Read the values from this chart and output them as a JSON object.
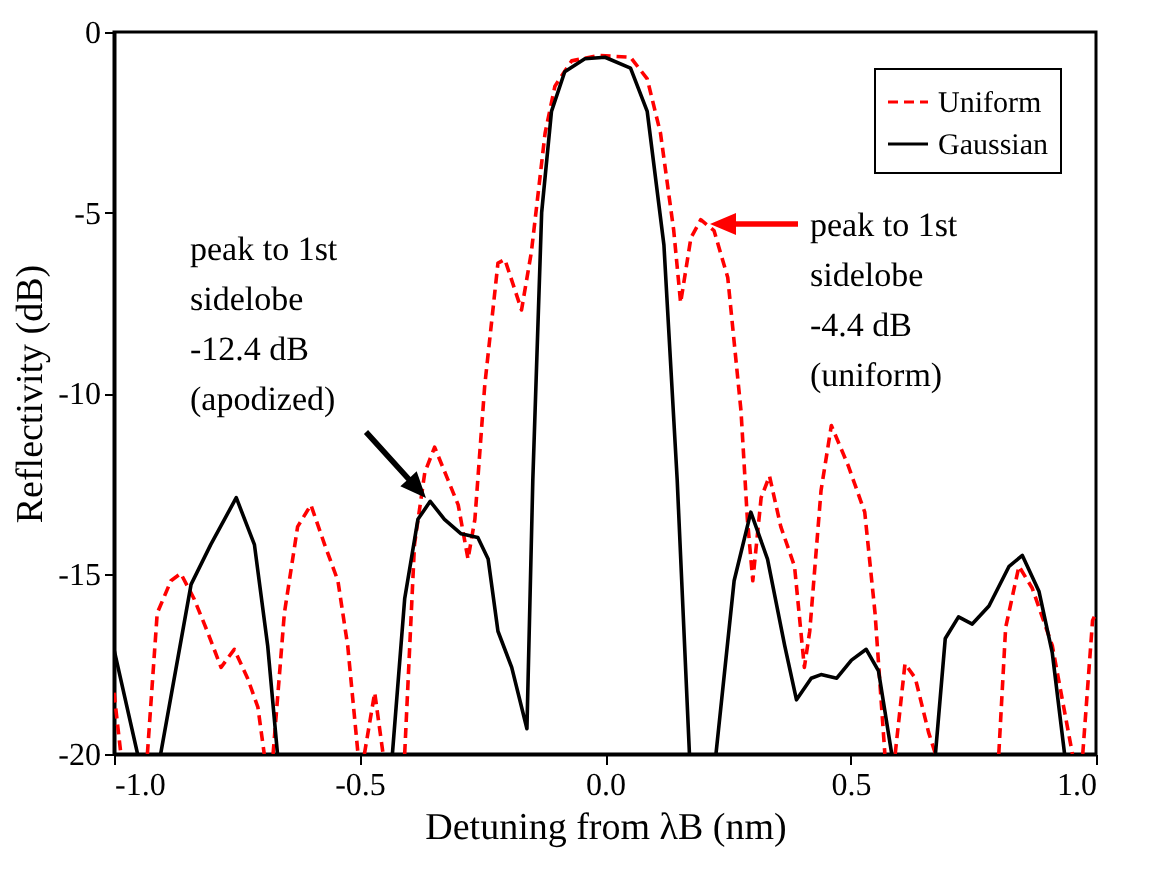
{
  "chart_data": {
    "type": "line",
    "xlabel": "Detuning from λB (nm)",
    "ylabel": "Reflectivity (dB)",
    "xlim": [
      -1.0,
      1.0
    ],
    "xticks": [
      {
        "value": -1,
        "label": "-1.0"
      },
      {
        "value": -0.5,
        "label": "-0.5"
      },
      {
        "value": 0,
        "label": "0.0"
      },
      {
        "value": 0.5,
        "label": "0.5"
      },
      {
        "value": 1,
        "label": "1.0"
      }
    ],
    "ylim": [
      -20,
      0
    ],
    "yticks": [
      -20,
      -15,
      -10,
      -5,
      0
    ],
    "grid": false,
    "legend": "top right",
    "series": [
      {
        "name": "Uniform",
        "color": "#ff0000",
        "line_style": "dashed",
        "x": [
          -1.0,
          -0.986,
          -0.96,
          -0.932,
          -0.912,
          -0.884,
          -0.864,
          -0.837,
          -0.81,
          -0.782,
          -0.755,
          -0.728,
          -0.707,
          -0.694,
          -0.685,
          -0.676,
          -0.653,
          -0.626,
          -0.599,
          -0.571,
          -0.544,
          -0.524,
          -0.503,
          -0.496,
          -0.49,
          -0.469,
          -0.452,
          -0.43,
          -0.408,
          -0.388,
          -0.367,
          -0.347,
          -0.32,
          -0.299,
          -0.279,
          -0.265,
          -0.245,
          -0.218,
          -0.204,
          -0.17,
          -0.15,
          -0.122,
          -0.102,
          -0.068,
          -0.014,
          0.052,
          0.086,
          0.113,
          0.14,
          0.154,
          0.175,
          0.195,
          0.222,
          0.25,
          0.277,
          0.29,
          0.301,
          0.318,
          0.335,
          0.358,
          0.386,
          0.406,
          0.417,
          0.44,
          0.461,
          0.495,
          0.529,
          0.55,
          0.57,
          0.58,
          0.591,
          0.611,
          0.632,
          0.659,
          0.673,
          0.74,
          0.802,
          0.816,
          0.843,
          0.87,
          0.911,
          0.952,
          0.962,
          0.973,
          0.993,
          1.0
        ],
        "values": [
          -18.3,
          -20,
          null,
          -20,
          -16.1,
          -15.2,
          -15.0,
          -15.7,
          -16.6,
          -17.6,
          -17.1,
          -17.9,
          -18.7,
          -20,
          null,
          -20,
          -16.1,
          -13.7,
          -13.1,
          -14.2,
          -15.2,
          -17.0,
          -20,
          null,
          -20,
          -18.3,
          -20,
          null,
          -20,
          -14.2,
          -12.2,
          -11.5,
          -12.4,
          -13.1,
          -14.6,
          -13.5,
          -9.8,
          -6.4,
          -6.3,
          -7.7,
          -6.1,
          -2.8,
          -1.5,
          -0.8,
          -0.65,
          -0.7,
          -1.3,
          -2.8,
          -5.5,
          -7.5,
          -5.7,
          -5.2,
          -5.5,
          -6.8,
          -10.5,
          -13.5,
          -15.2,
          -12.9,
          -12.3,
          -13.7,
          -14.8,
          -17.6,
          -16.6,
          -12.7,
          -10.9,
          -12.0,
          -13.3,
          -16.1,
          -20,
          null,
          -20,
          -17.5,
          -17.9,
          -19.4,
          -20,
          null,
          -20,
          -16.5,
          -14.8,
          -15.4,
          -17.0,
          -20,
          null,
          -20,
          -16.3,
          -16.1
        ]
      },
      {
        "name": "Gaussian",
        "color": "#000000",
        "line_style": "solid",
        "x": [
          -1.0,
          -0.952,
          -0.93,
          -0.905,
          -0.843,
          -0.803,
          -0.751,
          -0.714,
          -0.687,
          -0.667,
          -0.55,
          -0.433,
          -0.408,
          -0.381,
          -0.356,
          -0.327,
          -0.293,
          -0.259,
          -0.238,
          -0.218,
          -0.19,
          -0.159,
          -0.147,
          -0.129,
          -0.109,
          -0.082,
          -0.041,
          0.0,
          0.052,
          0.086,
          0.12,
          0.147,
          0.172,
          0.2,
          0.226,
          0.263,
          0.297,
          0.331,
          0.366,
          0.39,
          0.42,
          0.44,
          0.472,
          0.502,
          0.532,
          0.557,
          0.584,
          0.63,
          0.673,
          0.693,
          0.72,
          0.748,
          0.782,
          0.823,
          0.85,
          0.884,
          0.911,
          0.936
        ],
        "values": [
          -17.1,
          -20,
          null,
          -20,
          -15.3,
          -14.2,
          -12.9,
          -14.2,
          -17.0,
          -20,
          null,
          -20,
          -15.7,
          -13.5,
          -13.0,
          -13.5,
          -13.9,
          -14.0,
          -14.6,
          -16.6,
          -17.6,
          -19.3,
          -12.4,
          -5.0,
          -2.2,
          -1.1,
          -0.74,
          -0.7,
          -1.0,
          -2.2,
          -5.9,
          -12.4,
          -20,
          null,
          -20,
          -15.2,
          -13.3,
          -14.6,
          -17.0,
          -18.5,
          -17.9,
          -17.8,
          -17.9,
          -17.4,
          -17.1,
          -17.7,
          -20,
          null,
          -20,
          -16.8,
          -16.2,
          -16.4,
          -15.9,
          -14.8,
          -14.5,
          -15.5,
          -17.2,
          -20
        ]
      }
    ],
    "annotations": [
      "peak to 1st\nsidelobe\n-12.4 dB\n(apodized)",
      "peak to 1st\nsidelobe\n-4.4 dB\n(uniform)"
    ]
  }
}
